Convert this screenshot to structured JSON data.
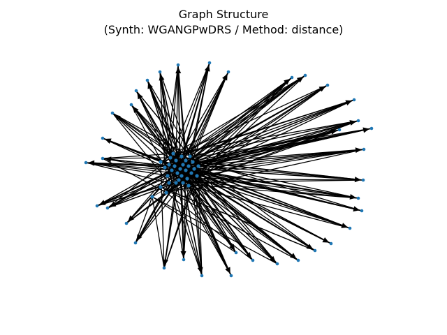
{
  "figure": {
    "title_line1": "Graph Structure",
    "title_line2": "(Synth: WGANGPwDRS / Method: distance)"
  },
  "colors": {
    "background": "#ffffff",
    "edge": "#000000",
    "node": "#1f77b4"
  },
  "legend": null
}
